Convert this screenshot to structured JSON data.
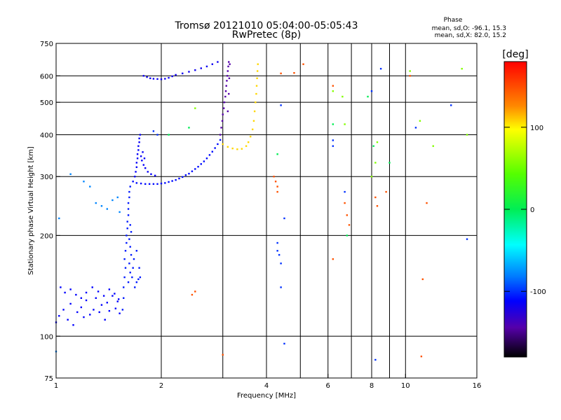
{
  "chart_data": {
    "type": "scatter",
    "title": "Tromsø 20121010 05:04:00-05:05:43",
    "subtitle": "RwPretec (8p)",
    "xlabel": "Frequency [MHz]",
    "ylabel": "Stationary phase Virtual Height [km]",
    "x_scale": "log",
    "y_scale": "log",
    "xlim": [
      1,
      16
    ],
    "ylim": [
      75,
      750
    ],
    "x_ticks": [
      1,
      2,
      4,
      6,
      8,
      10,
      16
    ],
    "y_ticks": [
      75,
      100,
      200,
      300,
      400,
      500,
      600,
      750
    ],
    "x_gridlines": [
      1,
      2,
      3,
      4,
      5,
      6,
      7,
      8,
      9,
      10,
      16
    ],
    "y_gridlines": [
      100,
      200,
      300,
      400,
      500,
      600
    ],
    "phase_stats": {
      "title": "Phase",
      "o_line": "mean, sd,O: -96.1, 15.3",
      "x_line": "mean, sd,X:  82.0, 15.2"
    },
    "colorbar": {
      "label": "[deg]",
      "range": [
        -180,
        180
      ],
      "ticks": [
        "100",
        "0",
        "-100"
      ],
      "tick_values": [
        100,
        0,
        -100
      ]
    },
    "series": [
      {
        "phase": -110,
        "points": [
          [
            1.0,
            110
          ],
          [
            1.02,
            115
          ],
          [
            1.05,
            120
          ],
          [
            1.08,
            112
          ],
          [
            1.1,
            125
          ],
          [
            1.12,
            108
          ],
          [
            1.15,
            118
          ],
          [
            1.18,
            122
          ],
          [
            1.2,
            114
          ],
          [
            1.22,
            128
          ],
          [
            1.25,
            116
          ],
          [
            1.28,
            120
          ],
          [
            1.3,
            130
          ],
          [
            1.33,
            118
          ],
          [
            1.35,
            124
          ],
          [
            1.38,
            112
          ],
          [
            1.4,
            126
          ],
          [
            1.42,
            119
          ],
          [
            1.45,
            132
          ],
          [
            1.48,
            121
          ],
          [
            1.5,
            127
          ],
          [
            1.52,
            117
          ],
          [
            1.03,
            140
          ],
          [
            1.06,
            135
          ],
          [
            1.1,
            138
          ],
          [
            1.14,
            133
          ],
          [
            1.18,
            130
          ],
          [
            1.22,
            135
          ],
          [
            1.27,
            140
          ],
          [
            1.32,
            136
          ],
          [
            1.37,
            132
          ],
          [
            1.42,
            138
          ],
          [
            1.47,
            134
          ],
          [
            1.51,
            129
          ]
        ]
      },
      {
        "phase": -105,
        "points": [
          [
            1.55,
            120
          ],
          [
            1.56,
            130
          ],
          [
            1.56,
            140
          ],
          [
            1.57,
            150
          ],
          [
            1.58,
            160
          ],
          [
            1.57,
            170
          ],
          [
            1.58,
            180
          ],
          [
            1.59,
            190
          ],
          [
            1.59,
            200
          ],
          [
            1.6,
            210
          ],
          [
            1.6,
            220
          ],
          [
            1.61,
            230
          ],
          [
            1.61,
            240
          ],
          [
            1.61,
            250
          ],
          [
            1.62,
            260
          ],
          [
            1.62,
            270
          ],
          [
            1.63,
            280
          ],
          [
            1.61,
            145
          ],
          [
            1.63,
            155
          ],
          [
            1.62,
            165
          ],
          [
            1.64,
            175
          ],
          [
            1.63,
            185
          ],
          [
            1.62,
            195
          ],
          [
            1.64,
            205
          ],
          [
            1.63,
            215
          ],
          [
            1.65,
            150
          ],
          [
            1.66,
            160
          ],
          [
            1.67,
            170
          ],
          [
            1.68,
            140
          ],
          [
            1.7,
            145
          ],
          [
            1.72,
            148
          ],
          [
            1.74,
            150
          ],
          [
            1.7,
            180
          ],
          [
            1.73,
            160
          ]
        ]
      },
      {
        "phase": -108,
        "points": [
          [
            1.66,
            290
          ],
          [
            1.7,
            287
          ],
          [
            1.75,
            286
          ],
          [
            1.8,
            285
          ],
          [
            1.85,
            285
          ],
          [
            1.9,
            285
          ],
          [
            1.95,
            285
          ],
          [
            2.0,
            286
          ],
          [
            2.05,
            287
          ],
          [
            2.1,
            289
          ],
          [
            2.15,
            291
          ],
          [
            2.2,
            293
          ],
          [
            2.25,
            296
          ],
          [
            2.3,
            299
          ],
          [
            2.35,
            303
          ],
          [
            2.4,
            306
          ],
          [
            2.45,
            311
          ],
          [
            2.5,
            316
          ],
          [
            2.55,
            321
          ],
          [
            2.6,
            327
          ],
          [
            2.65,
            333
          ],
          [
            2.7,
            340
          ],
          [
            2.75,
            348
          ],
          [
            2.8,
            356
          ],
          [
            2.85,
            365
          ],
          [
            2.9,
            375
          ],
          [
            2.95,
            386
          ]
        ]
      },
      {
        "phase": -112,
        "points": [
          [
            1.68,
            300
          ],
          [
            1.69,
            310
          ],
          [
            1.7,
            320
          ],
          [
            1.7,
            330
          ],
          [
            1.71,
            340
          ],
          [
            1.71,
            350
          ],
          [
            1.72,
            360
          ],
          [
            1.72,
            370
          ],
          [
            1.73,
            380
          ],
          [
            1.73,
            390
          ],
          [
            1.74,
            400
          ],
          [
            1.76,
            335
          ],
          [
            1.78,
            325
          ],
          [
            1.8,
            318
          ],
          [
            1.83,
            310
          ],
          [
            1.87,
            305
          ],
          [
            1.92,
            302
          ],
          [
            1.75,
            345
          ],
          [
            1.77,
            355
          ],
          [
            1.79,
            340
          ]
        ]
      },
      {
        "phase": -115,
        "points": [
          [
            1.78,
            600
          ],
          [
            1.82,
            595
          ],
          [
            1.86,
            590
          ],
          [
            1.9,
            588
          ],
          [
            1.95,
            587
          ],
          [
            2.0,
            586
          ],
          [
            2.05,
            588
          ],
          [
            2.1,
            592
          ],
          [
            2.15,
            598
          ],
          [
            2.2,
            604
          ],
          [
            2.3,
            610
          ],
          [
            2.4,
            617
          ],
          [
            2.5,
            624
          ],
          [
            2.6,
            632
          ],
          [
            2.7,
            640
          ],
          [
            2.8,
            650
          ],
          [
            2.9,
            660
          ]
        ]
      },
      {
        "phase": -140,
        "points": [
          [
            2.95,
            400
          ],
          [
            2.97,
            420
          ],
          [
            2.99,
            440
          ],
          [
            3.0,
            460
          ],
          [
            3.02,
            480
          ],
          [
            3.03,
            500
          ],
          [
            3.05,
            520
          ],
          [
            3.06,
            540
          ],
          [
            3.07,
            560
          ],
          [
            3.08,
            580
          ],
          [
            3.09,
            600
          ],
          [
            3.1,
            620
          ],
          [
            3.11,
            640
          ],
          [
            3.12,
            660
          ],
          [
            3.1,
            470
          ],
          [
            3.12,
            530
          ],
          [
            3.13,
            590
          ],
          [
            3.14,
            650
          ]
        ]
      },
      {
        "phase": 110,
        "points": [
          [
            3.0,
            375
          ],
          [
            3.1,
            368
          ],
          [
            3.2,
            364
          ],
          [
            3.3,
            362
          ],
          [
            3.4,
            363
          ],
          [
            3.5,
            370
          ],
          [
            3.55,
            380
          ],
          [
            3.6,
            395
          ],
          [
            3.65,
            415
          ],
          [
            3.68,
            440
          ],
          [
            3.7,
            470
          ],
          [
            3.72,
            500
          ],
          [
            3.74,
            530
          ],
          [
            3.75,
            560
          ],
          [
            3.76,
            590
          ],
          [
            3.77,
            620
          ],
          [
            3.78,
            650
          ]
        ]
      },
      {
        "phase": -80,
        "points": [
          [
            1.1,
            305
          ],
          [
            1.2,
            290
          ],
          [
            1.25,
            280
          ],
          [
            1.3,
            250
          ],
          [
            1.35,
            245
          ],
          [
            1.4,
            240
          ],
          [
            1.45,
            255
          ],
          [
            1.5,
            260
          ],
          [
            1.52,
            235
          ],
          [
            1.02,
            225
          ],
          [
            1.0,
            90
          ]
        ]
      },
      {
        "phase": 150,
        "points": [
          [
            2.45,
            133
          ],
          [
            2.5,
            136
          ],
          [
            3.0,
            88
          ],
          [
            4.2,
            300
          ],
          [
            4.25,
            290
          ],
          [
            4.3,
            280
          ],
          [
            4.3,
            270
          ],
          [
            4.4,
            610
          ],
          [
            4.8,
            612
          ],
          [
            6.2,
            560
          ],
          [
            6.2,
            170
          ],
          [
            6.7,
            250
          ],
          [
            6.8,
            230
          ],
          [
            6.9,
            215
          ],
          [
            8.2,
            260
          ],
          [
            8.3,
            245
          ],
          [
            8.8,
            270
          ],
          [
            10.3,
            600
          ],
          [
            11.5,
            250
          ],
          [
            11.1,
            87
          ],
          [
            11.2,
            148
          ],
          [
            5.1,
            650
          ]
        ]
      },
      {
        "phase": -100,
        "points": [
          [
            4.3,
            190
          ],
          [
            4.3,
            180
          ],
          [
            4.35,
            175
          ],
          [
            4.4,
            165
          ],
          [
            4.4,
            140
          ],
          [
            4.5,
            95
          ],
          [
            4.5,
            225
          ],
          [
            4.4,
            490
          ],
          [
            6.2,
            385
          ],
          [
            6.2,
            370
          ],
          [
            6.7,
            270
          ],
          [
            8.0,
            540
          ],
          [
            8.2,
            85
          ],
          [
            8.5,
            630
          ],
          [
            10.7,
            420
          ],
          [
            13.5,
            490
          ],
          [
            15.0,
            195
          ],
          [
            1.9,
            410
          ],
          [
            1.95,
            400
          ]
        ]
      },
      {
        "phase": 60,
        "points": [
          [
            2.5,
            480
          ],
          [
            6.2,
            540
          ],
          [
            6.6,
            520
          ],
          [
            6.7,
            430
          ],
          [
            8.0,
            300
          ],
          [
            8.3,
            380
          ],
          [
            8.2,
            330
          ],
          [
            10.3,
            620
          ],
          [
            12.0,
            370
          ],
          [
            14.5,
            630
          ],
          [
            15.0,
            400
          ],
          [
            11.0,
            440
          ]
        ]
      },
      {
        "phase": 0,
        "points": [
          [
            2.4,
            420
          ],
          [
            4.3,
            350
          ],
          [
            6.2,
            430
          ],
          [
            6.8,
            200
          ],
          [
            8.1,
            370
          ],
          [
            9.0,
            330
          ],
          [
            7.8,
            520
          ],
          [
            2.1,
            400
          ]
        ]
      }
    ]
  }
}
